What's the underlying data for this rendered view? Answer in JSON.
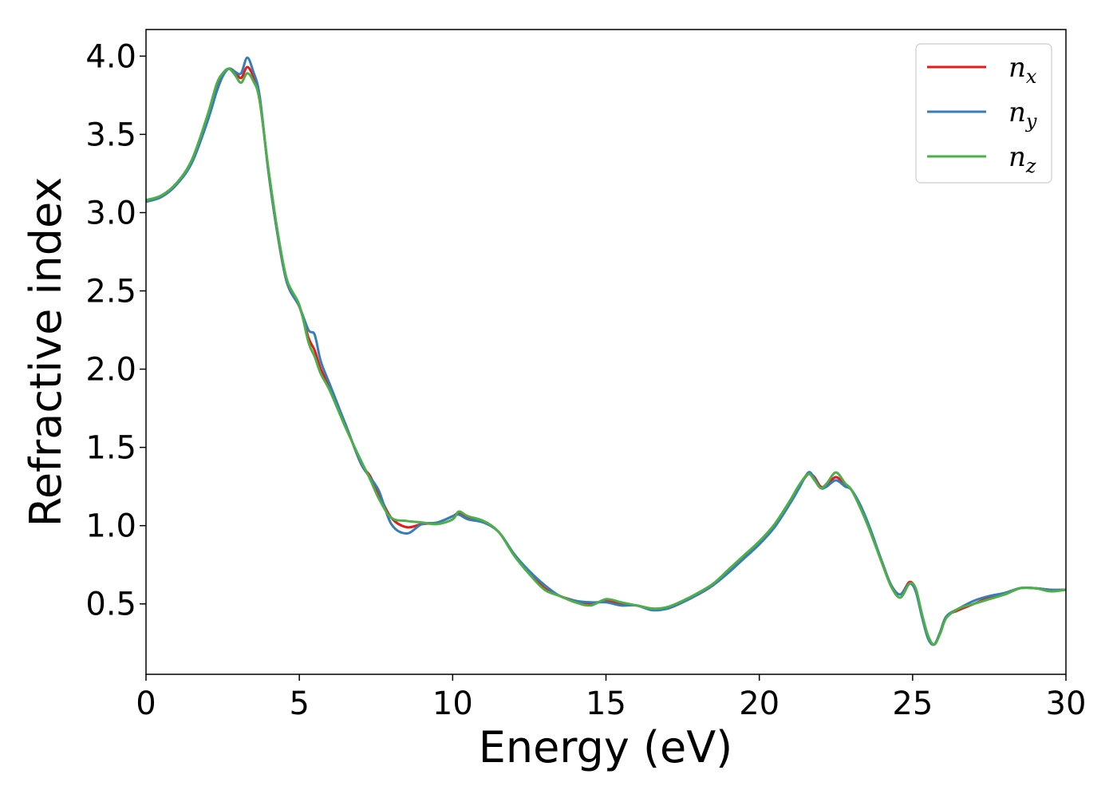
{
  "chart_data": {
    "type": "line",
    "xlabel": "Energy (eV)",
    "ylabel": "Refractive index",
    "xlim": [
      0,
      30
    ],
    "ylim": [
      0.05,
      4.17
    ],
    "xticks": [
      0,
      5,
      10,
      15,
      20,
      25,
      30
    ],
    "xtick_labels": [
      "0",
      "5",
      "10",
      "15",
      "20",
      "25",
      "30"
    ],
    "yticks": [
      0.5,
      1.0,
      1.5,
      2.0,
      2.5,
      3.0,
      3.5,
      4.0
    ],
    "ytick_labels": [
      "0.5",
      "1.0",
      "1.5",
      "2.0",
      "2.5",
      "3.0",
      "3.5",
      "4.0"
    ],
    "grid": false,
    "legend_position": "top-right",
    "series": [
      {
        "name": "n",
        "subscript": "x",
        "color": "#e41a1c",
        "x": [
          0,
          0.5,
          1.0,
          1.5,
          2.0,
          2.3,
          2.5,
          2.7,
          2.9,
          3.1,
          3.3,
          3.5,
          3.7,
          4.0,
          4.3,
          4.6,
          5.0,
          5.3,
          5.5,
          5.7,
          6.0,
          6.5,
          7.0,
          7.3,
          7.6,
          8.0,
          8.5,
          9.0,
          9.5,
          10.0,
          10.2,
          10.5,
          11.0,
          11.5,
          12.0,
          12.5,
          13.0,
          13.5,
          14.0,
          14.5,
          15.0,
          15.5,
          16.0,
          16.5,
          17.0,
          17.5,
          18.0,
          18.5,
          19.0,
          19.5,
          20.0,
          20.5,
          21.0,
          21.3,
          21.6,
          21.8,
          22.0,
          22.2,
          22.5,
          22.8,
          23.0,
          23.3,
          23.6,
          24.0,
          24.3,
          24.6,
          24.9,
          25.1,
          25.3,
          25.5,
          25.7,
          25.9,
          26.1,
          26.5,
          27.0,
          27.5,
          28.0,
          28.5,
          29.0,
          29.5,
          30.0
        ],
        "y": [
          3.07,
          3.1,
          3.18,
          3.33,
          3.6,
          3.8,
          3.88,
          3.92,
          3.9,
          3.86,
          3.93,
          3.87,
          3.75,
          3.25,
          2.85,
          2.55,
          2.4,
          2.2,
          2.12,
          2.0,
          1.88,
          1.65,
          1.4,
          1.32,
          1.2,
          1.05,
          0.99,
          1.01,
          1.02,
          1.06,
          1.08,
          1.05,
          1.03,
          0.96,
          0.82,
          0.7,
          0.6,
          0.55,
          0.52,
          0.5,
          0.52,
          0.5,
          0.49,
          0.47,
          0.47,
          0.51,
          0.56,
          0.62,
          0.71,
          0.8,
          0.89,
          1.0,
          1.15,
          1.25,
          1.33,
          1.31,
          1.25,
          1.26,
          1.31,
          1.26,
          1.23,
          1.12,
          0.98,
          0.77,
          0.62,
          0.56,
          0.64,
          0.59,
          0.43,
          0.29,
          0.24,
          0.32,
          0.42,
          0.46,
          0.5,
          0.54,
          0.56,
          0.6,
          0.6,
          0.59,
          0.59
        ]
      },
      {
        "name": "n",
        "subscript": "y",
        "color": "#377eb8",
        "x": [
          0,
          0.5,
          1.0,
          1.5,
          2.0,
          2.3,
          2.5,
          2.7,
          2.9,
          3.1,
          3.3,
          3.5,
          3.7,
          4.0,
          4.3,
          4.6,
          5.0,
          5.3,
          5.5,
          5.7,
          6.0,
          6.5,
          7.0,
          7.3,
          7.6,
          8.0,
          8.5,
          9.0,
          9.5,
          10.0,
          10.2,
          10.5,
          11.0,
          11.5,
          12.0,
          12.5,
          13.0,
          13.5,
          14.0,
          14.5,
          15.0,
          15.5,
          16.0,
          16.5,
          17.0,
          17.5,
          18.0,
          18.5,
          19.0,
          19.5,
          20.0,
          20.5,
          21.0,
          21.3,
          21.6,
          21.8,
          22.0,
          22.2,
          22.5,
          22.8,
          23.0,
          23.3,
          23.6,
          24.0,
          24.3,
          24.6,
          24.9,
          25.1,
          25.3,
          25.5,
          25.7,
          25.9,
          26.1,
          26.5,
          27.0,
          27.5,
          28.0,
          28.5,
          29.0,
          29.5,
          30.0
        ],
        "y": [
          3.07,
          3.1,
          3.18,
          3.32,
          3.58,
          3.77,
          3.87,
          3.92,
          3.9,
          3.89,
          3.99,
          3.9,
          3.75,
          3.25,
          2.85,
          2.55,
          2.4,
          2.25,
          2.22,
          2.05,
          1.9,
          1.65,
          1.4,
          1.31,
          1.22,
          1.01,
          0.95,
          1.01,
          1.02,
          1.06,
          1.07,
          1.04,
          1.02,
          0.96,
          0.82,
          0.71,
          0.62,
          0.55,
          0.52,
          0.51,
          0.51,
          0.49,
          0.49,
          0.46,
          0.47,
          0.51,
          0.56,
          0.62,
          0.7,
          0.79,
          0.88,
          0.99,
          1.14,
          1.24,
          1.34,
          1.3,
          1.24,
          1.25,
          1.29,
          1.25,
          1.23,
          1.13,
          0.99,
          0.77,
          0.62,
          0.56,
          0.63,
          0.58,
          0.42,
          0.28,
          0.24,
          0.32,
          0.42,
          0.47,
          0.52,
          0.55,
          0.57,
          0.6,
          0.6,
          0.59,
          0.59
        ]
      },
      {
        "name": "n",
        "subscript": "z",
        "color": "#4daf4a",
        "x": [
          0,
          0.5,
          1.0,
          1.5,
          2.0,
          2.3,
          2.5,
          2.7,
          2.9,
          3.1,
          3.3,
          3.5,
          3.7,
          4.0,
          4.3,
          4.6,
          5.0,
          5.3,
          5.5,
          5.7,
          6.0,
          6.5,
          7.0,
          7.3,
          7.6,
          8.0,
          8.5,
          9.0,
          9.5,
          10.0,
          10.2,
          10.5,
          11.0,
          11.5,
          12.0,
          12.5,
          13.0,
          13.5,
          14.0,
          14.5,
          15.0,
          15.5,
          16.0,
          16.5,
          17.0,
          17.5,
          18.0,
          18.5,
          19.0,
          19.5,
          20.0,
          20.5,
          21.0,
          21.3,
          21.6,
          21.8,
          22.0,
          22.2,
          22.5,
          22.8,
          23.0,
          23.3,
          23.6,
          24.0,
          24.3,
          24.6,
          24.9,
          25.1,
          25.3,
          25.5,
          25.7,
          25.9,
          26.1,
          26.5,
          27.0,
          27.5,
          28.0,
          28.5,
          29.0,
          29.5,
          30.0
        ],
        "y": [
          3.08,
          3.11,
          3.19,
          3.34,
          3.62,
          3.82,
          3.89,
          3.92,
          3.88,
          3.83,
          3.89,
          3.84,
          3.72,
          3.27,
          2.87,
          2.57,
          2.41,
          2.17,
          2.08,
          1.97,
          1.86,
          1.63,
          1.42,
          1.3,
          1.17,
          1.05,
          1.03,
          1.02,
          1.01,
          1.04,
          1.09,
          1.06,
          1.03,
          0.96,
          0.81,
          0.69,
          0.59,
          0.55,
          0.51,
          0.49,
          0.53,
          0.51,
          0.49,
          0.47,
          0.48,
          0.52,
          0.57,
          0.63,
          0.72,
          0.81,
          0.9,
          1.01,
          1.16,
          1.26,
          1.33,
          1.29,
          1.24,
          1.27,
          1.34,
          1.27,
          1.23,
          1.11,
          0.97,
          0.76,
          0.61,
          0.54,
          0.63,
          0.6,
          0.44,
          0.3,
          0.24,
          0.31,
          0.41,
          0.47,
          0.5,
          0.53,
          0.56,
          0.6,
          0.6,
          0.58,
          0.59
        ]
      }
    ]
  }
}
